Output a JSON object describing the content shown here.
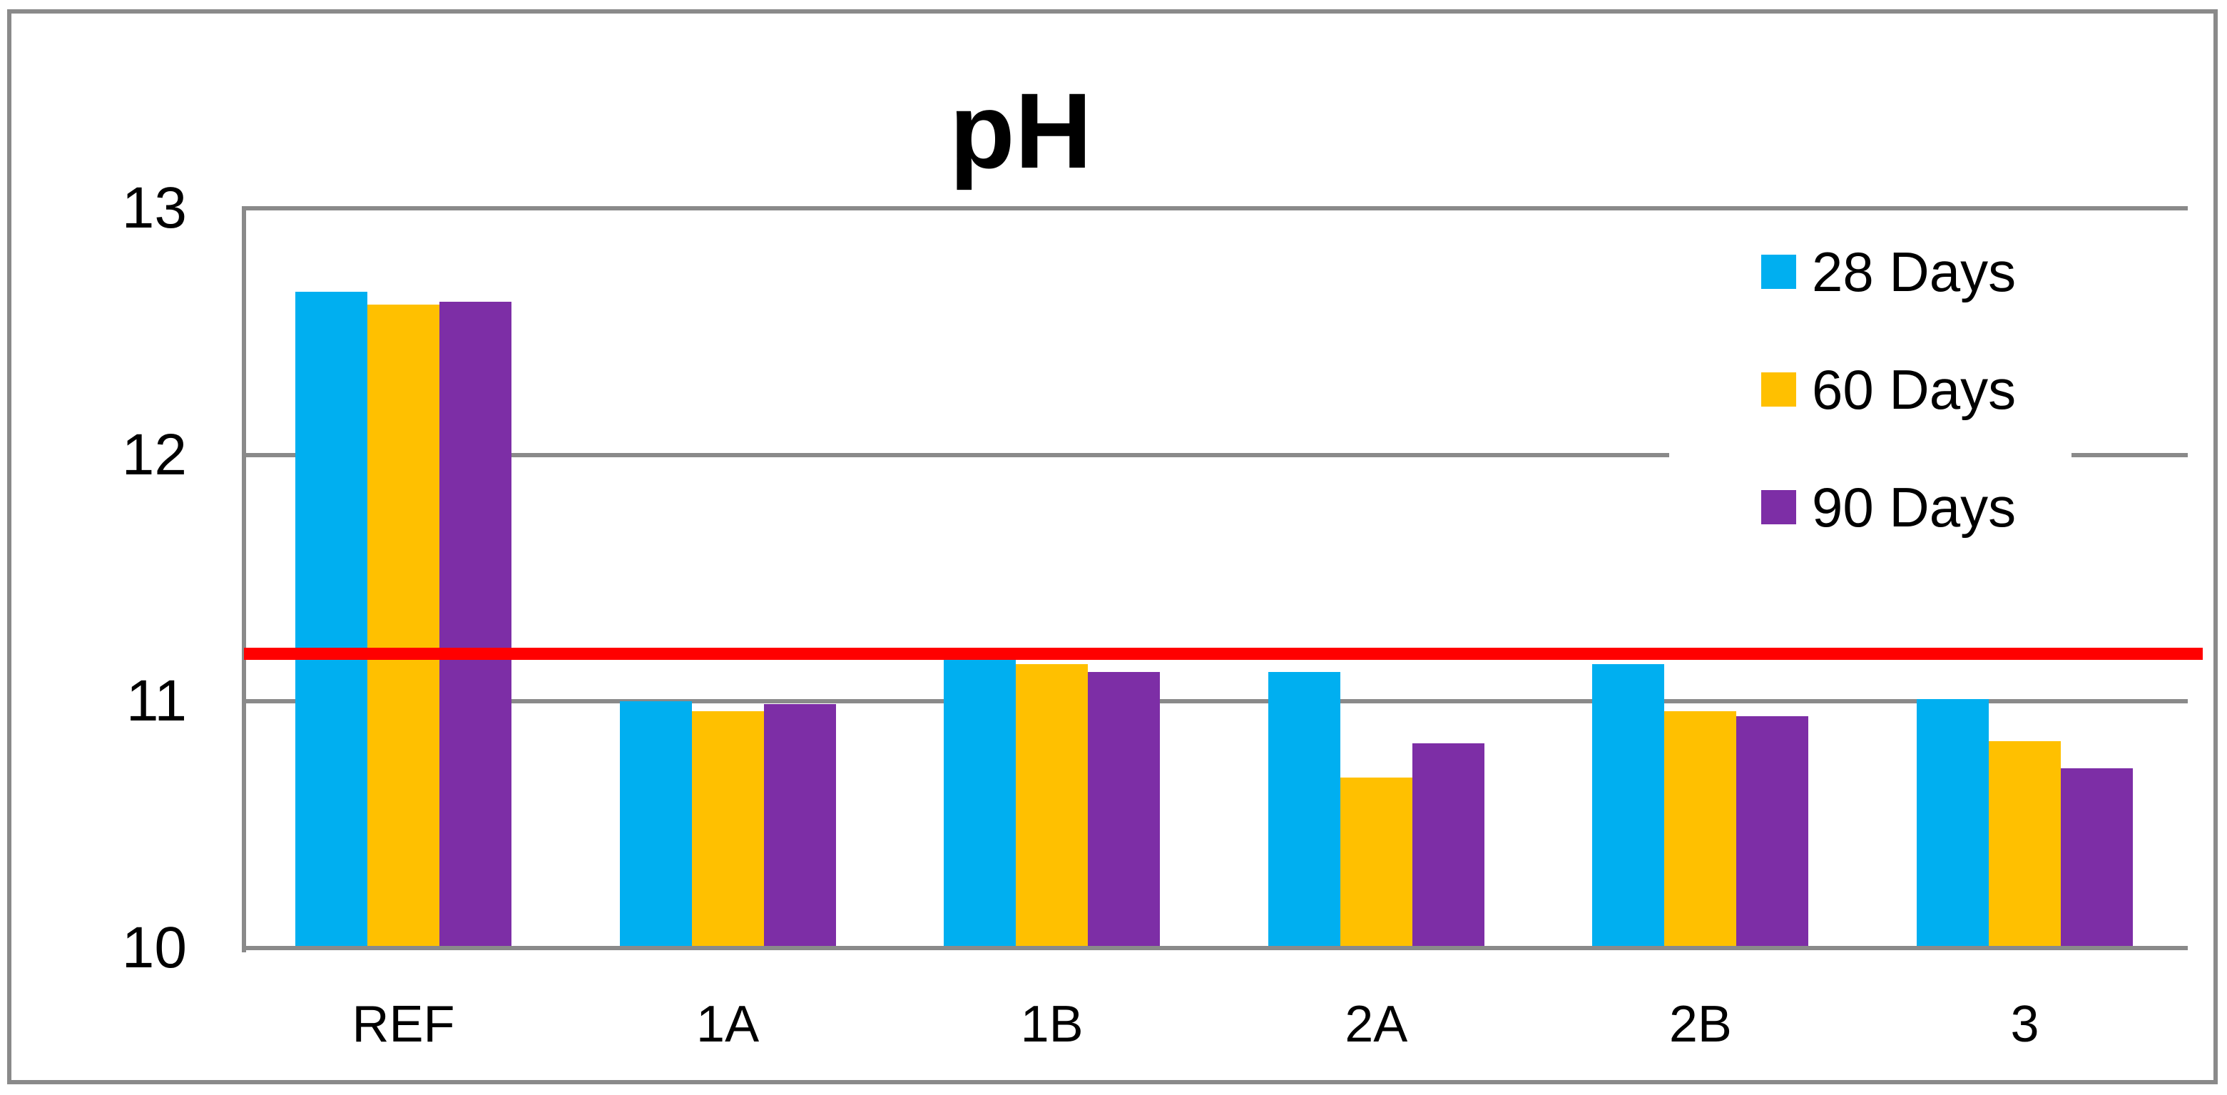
{
  "title": "pH",
  "chart_data": {
    "type": "bar",
    "title": "pH",
    "categories": [
      "REF",
      "1A",
      "1B",
      "2A",
      "2B",
      "3"
    ],
    "series": [
      {
        "name": "28 Days",
        "color": "#00AFF0",
        "values": [
          12.66,
          11.0,
          11.17,
          11.12,
          11.15,
          11.01
        ]
      },
      {
        "name": "60 Days",
        "color": "#FFC000",
        "values": [
          12.61,
          10.96,
          11.15,
          10.69,
          10.96,
          10.84
        ]
      },
      {
        "name": "90 Days",
        "color": "#7D2EA6",
        "values": [
          12.62,
          10.99,
          11.12,
          10.83,
          10.94,
          10.73
        ]
      }
    ],
    "reference_line": {
      "value": 11.2,
      "color": "#FF0000"
    },
    "ylim": [
      10,
      13
    ],
    "yticks": [
      10,
      11,
      12,
      13
    ],
    "ytick_labels": [
      "10",
      "11",
      "12",
      "13"
    ],
    "grid": true,
    "legend": {
      "position": "right-overlay",
      "entries": [
        "28 Days",
        "60 Days",
        "90 Days"
      ]
    }
  },
  "colors": {
    "grid_line": "#8A8A8A",
    "axis_line": "#8A8A8A",
    "figure_border": "#8A8A8A",
    "reference_line": "#FF0000",
    "text": "#000000",
    "background": "#FFFFFF"
  }
}
